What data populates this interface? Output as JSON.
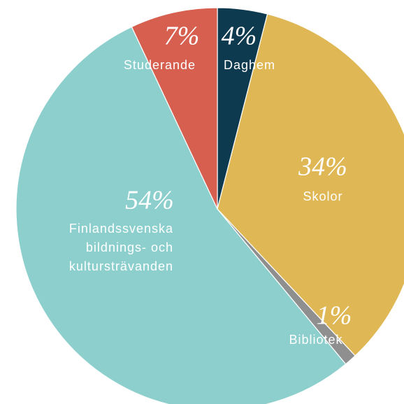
{
  "chart_data": {
    "type": "pie",
    "categories": [
      "Daghem",
      "Skolor",
      "Bibliotek",
      "Finlandssvenska bildnings- och kultursträvanden",
      "Studerande"
    ],
    "values": [
      4,
      34,
      1,
      54,
      7
    ],
    "value_labels": [
      "4%",
      "34%",
      "1%",
      "54%",
      "7%"
    ],
    "colors": [
      "#0d3a4f",
      "#dfb855",
      "#8f8f8f",
      "#8ccfcd",
      "#d65f4f"
    ]
  }
}
